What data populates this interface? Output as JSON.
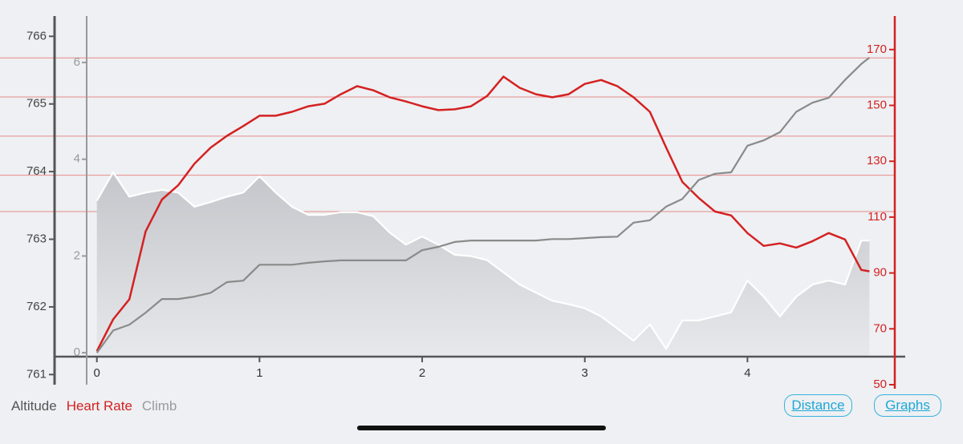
{
  "chart_data": {
    "type": "line",
    "x": [
      0,
      0.1,
      0.2,
      0.3,
      0.4,
      0.5,
      0.6,
      0.7,
      0.8,
      0.9,
      1.0,
      1.1,
      1.2,
      1.3,
      1.4,
      1.5,
      1.6,
      1.7,
      1.8,
      1.9,
      2.0,
      2.1,
      2.2,
      2.3,
      2.4,
      2.5,
      2.6,
      2.7,
      2.8,
      2.9,
      3.0,
      3.1,
      3.2,
      3.3,
      3.4,
      3.5,
      3.6,
      3.7,
      3.8,
      3.9,
      4.0,
      4.1,
      4.2,
      4.3,
      4.4,
      4.5,
      4.6,
      4.7,
      4.75
    ],
    "xlim": [
      -0.26,
      4.97
    ],
    "xticks": [
      0,
      1,
      2,
      3,
      4
    ],
    "ylim": [
      760.85,
      766.3
    ],
    "yticks": [
      761,
      762,
      763,
      764,
      765,
      766
    ],
    "y2lim": [
      50,
      182
    ],
    "y2ticks": [
      50,
      70,
      90,
      110,
      130,
      150,
      170
    ],
    "y3lim": [
      -0.66,
      6.96
    ],
    "y3ticks": [
      0,
      2,
      4,
      6
    ],
    "hr_zone_lines": [
      167,
      153,
      139,
      125,
      112
    ],
    "hr_zone_color": "#e88a8a",
    "series": [
      {
        "name": "Altitude",
        "color": "#ffffff",
        "fill": "#c9cbd0",
        "legend_color": "#555555",
        "axis": "y",
        "values": [
          763.57,
          763.99,
          763.63,
          763.69,
          763.73,
          763.69,
          763.48,
          763.55,
          763.63,
          763.69,
          763.93,
          763.69,
          763.48,
          763.36,
          763.36,
          763.4,
          763.4,
          763.34,
          763.1,
          762.92,
          763.04,
          762.92,
          762.77,
          762.75,
          762.69,
          762.51,
          762.33,
          762.21,
          762.09,
          762.04,
          761.98,
          761.86,
          761.68,
          761.5,
          761.74,
          761.38,
          761.8,
          761.8,
          761.86,
          761.92,
          762.39,
          762.15,
          761.86,
          762.15,
          762.33,
          762.39,
          762.33,
          762.98,
          762.98
        ]
      },
      {
        "name": "Heart Rate",
        "color": "#d42121",
        "legend_color": "#d42121",
        "axis": "y2",
        "values": [
          62,
          73.4,
          80.6,
          104.9,
          116.3,
          121.4,
          129.1,
          134.9,
          139.1,
          142.6,
          146.3,
          146.3,
          147.7,
          149.7,
          150.6,
          154,
          156.9,
          155.4,
          152.9,
          151.4,
          149.7,
          148.3,
          148.6,
          149.7,
          153.4,
          160.3,
          156.3,
          154,
          152.9,
          154,
          157.7,
          159.1,
          156.9,
          152.9,
          147.7,
          134.9,
          122.6,
          116.9,
          112,
          110.6,
          104.3,
          99.7,
          100.6,
          99.1,
          101.4,
          104.3,
          102,
          91.1,
          90.6
        ]
      },
      {
        "name": "Climb",
        "color": "#8a8a8a",
        "legend_color": "#9a9a9a",
        "axis": "y3",
        "values": [
          0,
          0.46,
          0.58,
          0.83,
          1.11,
          1.11,
          1.16,
          1.24,
          1.46,
          1.49,
          1.82,
          1.82,
          1.82,
          1.86,
          1.89,
          1.91,
          1.91,
          1.91,
          1.91,
          1.91,
          2.12,
          2.19,
          2.29,
          2.32,
          2.32,
          2.32,
          2.32,
          2.32,
          2.35,
          2.35,
          2.37,
          2.39,
          2.4,
          2.69,
          2.74,
          3.02,
          3.18,
          3.57,
          3.7,
          3.73,
          4.28,
          4.39,
          4.56,
          4.98,
          5.17,
          5.27,
          5.64,
          5.97,
          6.1
        ]
      }
    ],
    "controls": [
      "Distance",
      "Graphs"
    ]
  }
}
